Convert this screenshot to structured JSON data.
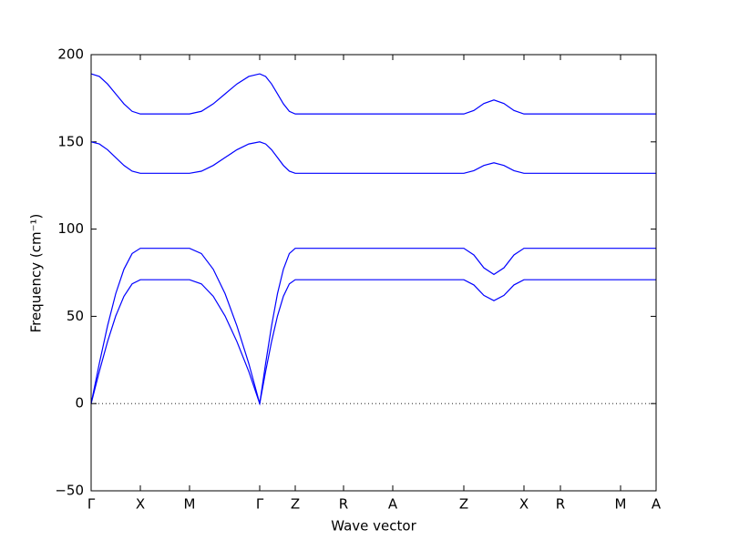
{
  "chart_data": {
    "type": "line",
    "xlabel": "Wave vector",
    "ylabel": "Frequency (cm⁻¹)",
    "x": [
      0,
      9,
      18,
      27,
      36,
      45,
      54,
      108,
      121,
      134,
      147,
      160,
      173,
      185,
      191.5,
      198,
      204.5,
      211,
      217.5,
      224,
      409,
      420,
      431,
      442,
      453,
      464,
      475,
      620
    ],
    "series": [
      {
        "color": "#0000ff",
        "values": [
          189,
          187.5,
          183.2,
          177.5,
          171.8,
          167.5,
          166,
          166,
          167.5,
          171.8,
          177.5,
          183.2,
          187.5,
          189,
          187.5,
          183.2,
          177.5,
          171.8,
          167.5,
          166,
          166,
          168,
          172,
          174,
          172,
          168,
          166,
          166
        ]
      },
      {
        "color": "#0000ff",
        "values": [
          150,
          148.8,
          145.5,
          141,
          136.5,
          133.2,
          132,
          132,
          133.2,
          136.5,
          141,
          145.5,
          148.8,
          150,
          148.8,
          145.5,
          141,
          136.5,
          133.2,
          132,
          132,
          133.5,
          136.5,
          138,
          136.5,
          133.5,
          132,
          132
        ]
      },
      {
        "color": "#0000ff",
        "values": [
          0,
          23,
          44.5,
          63,
          77,
          86,
          89,
          89,
          86,
          77,
          63,
          44.5,
          23,
          0,
          23,
          44.5,
          63,
          77,
          86,
          89,
          89,
          85.2,
          77.8,
          74,
          77.8,
          85.2,
          89,
          89
        ]
      },
      {
        "color": "#0000ff",
        "values": [
          0,
          18.4,
          35.5,
          50.2,
          61.5,
          68.6,
          71,
          71,
          68.6,
          61.5,
          50.2,
          35.5,
          18.4,
          0,
          18.4,
          35.5,
          50.2,
          61.5,
          68.6,
          71,
          71,
          68,
          62,
          59,
          62,
          68,
          71,
          71
        ]
      }
    ],
    "xlim": [
      0,
      620
    ],
    "xticks": [
      {
        "value": 0,
        "label": "Γ"
      },
      {
        "value": 54,
        "label": "X"
      },
      {
        "value": 108,
        "label": "M"
      },
      {
        "value": 185,
        "label": "Γ"
      },
      {
        "value": 224,
        "label": "Z"
      },
      {
        "value": 277,
        "label": "R"
      },
      {
        "value": 331,
        "label": "A"
      },
      {
        "value": 409,
        "label": "Z"
      },
      {
        "value": 475,
        "label": "X"
      },
      {
        "value": 515,
        "label": "R"
      },
      {
        "value": 581,
        "label": "M"
      },
      {
        "value": 620,
        "label": "A"
      }
    ],
    "ylim": [
      -50,
      200
    ],
    "yticks": [
      {
        "value": -50,
        "label": "−50"
      },
      0,
      50,
      100,
      150,
      200
    ],
    "zero_line": true
  }
}
